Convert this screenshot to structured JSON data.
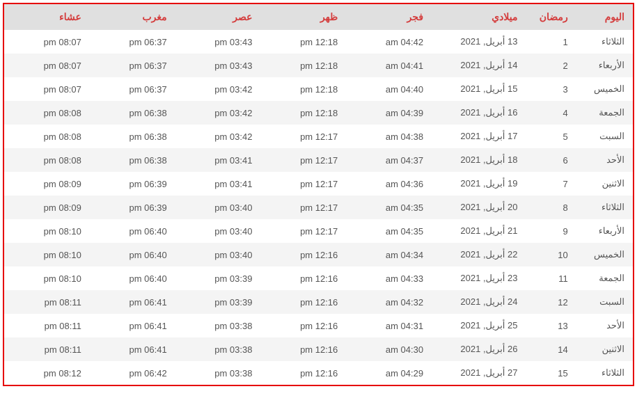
{
  "table": {
    "type": "table",
    "border_color": "#e60000",
    "header_bg": "#e0e0e0",
    "header_text_color": "#d43c3c",
    "row_alt_bg": "#f4f4f4",
    "row_bg": "#ffffff",
    "cell_text_color": "#555555",
    "header_fontsize": 14,
    "cell_fontsize": 13,
    "columns": [
      "اليوم",
      "رمضان",
      "ميلادي",
      "فجر",
      "ظهر",
      "عصر",
      "مغرب",
      "عشاء"
    ],
    "col_widths_pct": [
      9,
      8,
      15,
      13.6,
      13.6,
      13.6,
      13.6,
      13.6
    ],
    "rows": [
      [
        "الثلاثاء",
        "1",
        "13 أبريل, 2021",
        "am 04:42",
        "pm 12:18",
        "pm 03:43",
        "pm 06:37",
        "pm 08:07"
      ],
      [
        "الأربعاء",
        "2",
        "14 أبريل, 2021",
        "am 04:41",
        "pm 12:18",
        "pm 03:43",
        "pm 06:37",
        "pm 08:07"
      ],
      [
        "الخميس",
        "3",
        "15 أبريل, 2021",
        "am 04:40",
        "pm 12:18",
        "pm 03:42",
        "pm 06:37",
        "pm 08:07"
      ],
      [
        "الجمعة",
        "4",
        "16 أبريل, 2021",
        "am 04:39",
        "pm 12:18",
        "pm 03:42",
        "pm 06:38",
        "pm 08:08"
      ],
      [
        "السبت",
        "5",
        "17 أبريل, 2021",
        "am 04:38",
        "pm 12:17",
        "pm 03:42",
        "pm 06:38",
        "pm 08:08"
      ],
      [
        "الأحد",
        "6",
        "18 أبريل, 2021",
        "am 04:37",
        "pm 12:17",
        "pm 03:41",
        "pm 06:38",
        "pm 08:08"
      ],
      [
        "الاثنين",
        "7",
        "19 أبريل, 2021",
        "am 04:36",
        "pm 12:17",
        "pm 03:41",
        "pm 06:39",
        "pm 08:09"
      ],
      [
        "الثلاثاء",
        "8",
        "20 أبريل, 2021",
        "am 04:35",
        "pm 12:17",
        "pm 03:40",
        "pm 06:39",
        "pm 08:09"
      ],
      [
        "الأربعاء",
        "9",
        "21 أبريل, 2021",
        "am 04:35",
        "pm 12:17",
        "pm 03:40",
        "pm 06:40",
        "pm 08:10"
      ],
      [
        "الخميس",
        "10",
        "22 أبريل, 2021",
        "am 04:34",
        "pm 12:16",
        "pm 03:40",
        "pm 06:40",
        "pm 08:10"
      ],
      [
        "الجمعة",
        "11",
        "23 أبريل, 2021",
        "am 04:33",
        "pm 12:16",
        "pm 03:39",
        "pm 06:40",
        "pm 08:10"
      ],
      [
        "السبت",
        "12",
        "24 أبريل, 2021",
        "am 04:32",
        "pm 12:16",
        "pm 03:39",
        "pm 06:41",
        "pm 08:11"
      ],
      [
        "الأحد",
        "13",
        "25 أبريل, 2021",
        "am 04:31",
        "pm 12:16",
        "pm 03:38",
        "pm 06:41",
        "pm 08:11"
      ],
      [
        "الاثنين",
        "14",
        "26 أبريل, 2021",
        "am 04:30",
        "pm 12:16",
        "pm 03:38",
        "pm 06:41",
        "pm 08:11"
      ],
      [
        "الثلاثاء",
        "15",
        "27 أبريل, 2021",
        "am 04:29",
        "pm 12:16",
        "pm 03:38",
        "pm 06:42",
        "pm 08:12"
      ]
    ]
  }
}
